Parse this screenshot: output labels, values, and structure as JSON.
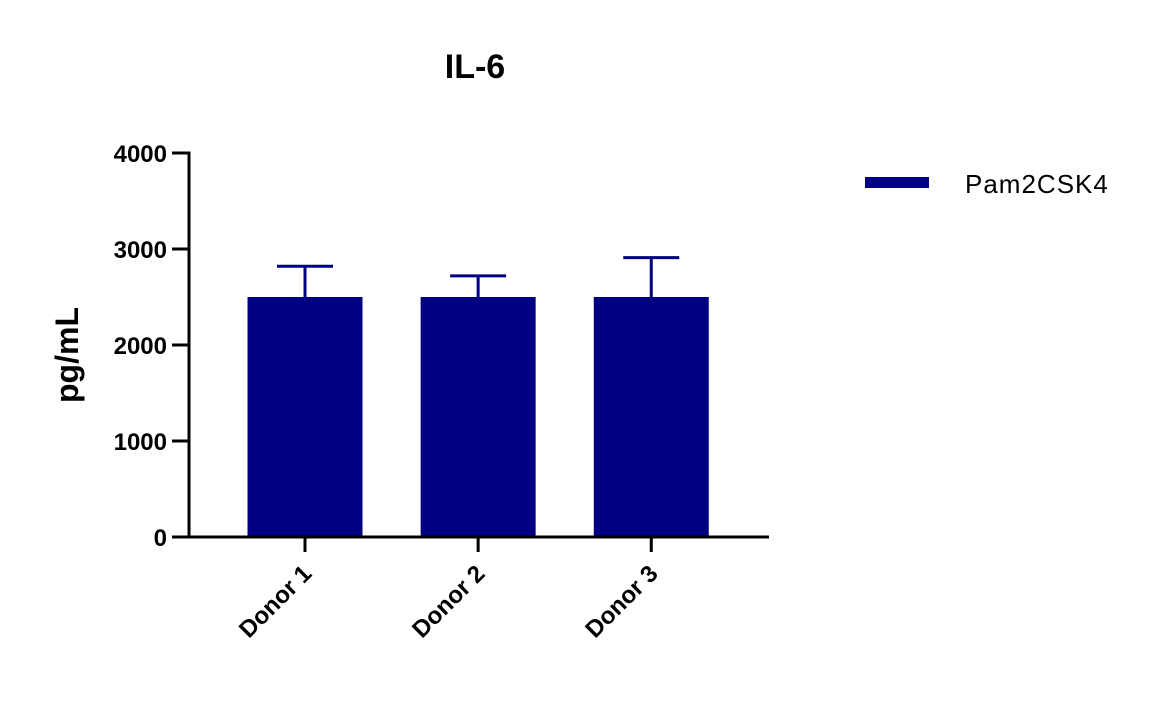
{
  "chart_data": {
    "type": "bar",
    "title": "IL-6",
    "xlabel": "",
    "ylabel": "pg/mL",
    "categories": [
      "Donor 1",
      "Donor 2",
      "Donor 3"
    ],
    "series": [
      {
        "name": "Pam2CSK4",
        "values": [
          2500,
          2500,
          2500
        ],
        "error_upper": [
          320,
          220,
          410
        ],
        "color": "#000080"
      }
    ],
    "ylim": [
      0,
      4000
    ],
    "yticks": [
      0,
      1000,
      2000,
      3000,
      4000
    ],
    "ytick_labels": [
      "0",
      "1000",
      "2000",
      "3000",
      "4000"
    ],
    "grid": false,
    "legend_position": "right"
  }
}
